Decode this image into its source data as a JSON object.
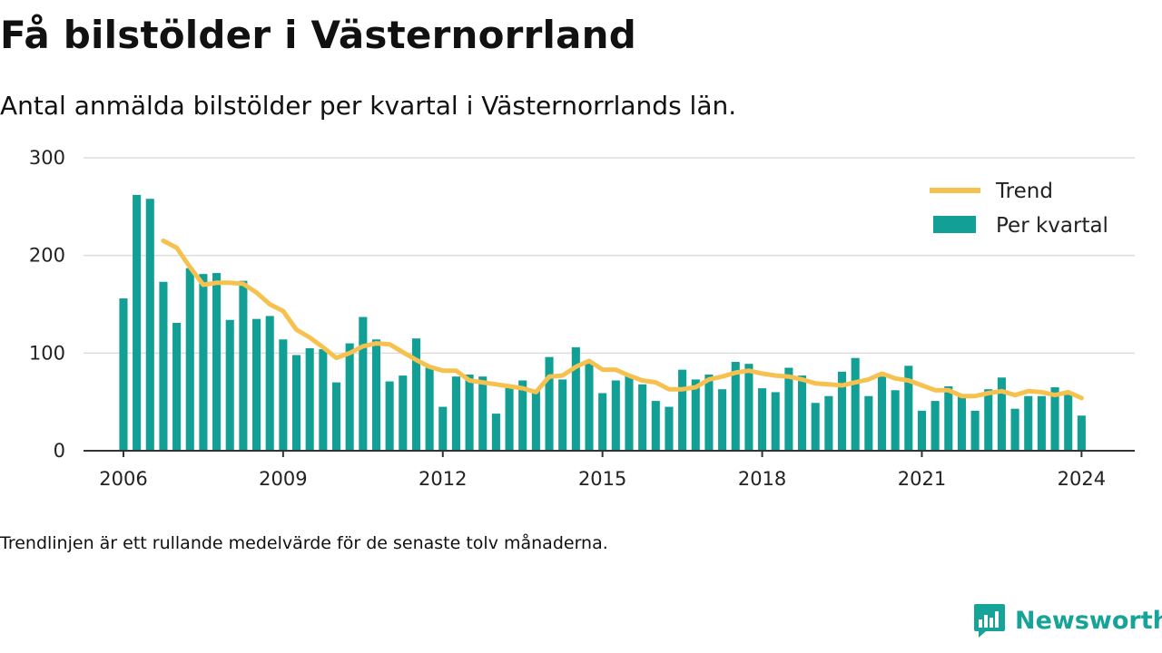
{
  "header": {
    "title": "Få bilstölder i Västernorrland",
    "subtitle": "Antal anmälda bilstölder per kvartal i Västernorrlands län."
  },
  "footnote": "Trendlinjen är ett rullande medelvärde för de senaste tolv månaderna.",
  "brand": {
    "name": "Newsworthy",
    "logo_icon": "newsworthy-bar-chart-icon",
    "color": "#17a398"
  },
  "chart_data": {
    "type": "bar",
    "ylim": [
      0,
      300
    ],
    "yticks": [
      0,
      100,
      200,
      300
    ],
    "xlim": [
      2005.25,
      2025.0
    ],
    "xticks": [
      "2006",
      "2009",
      "2012",
      "2015",
      "2018",
      "2021",
      "2024"
    ],
    "grid": "horizontal",
    "legend_position": "top-right",
    "colors": {
      "bars": "#12a096",
      "trend": "#f7c150",
      "grid": "#dddddd",
      "axis": "#333333"
    },
    "x": [
      "2006-Q1",
      "2006-Q2",
      "2006-Q3",
      "2006-Q4",
      "2007-Q1",
      "2007-Q2",
      "2007-Q3",
      "2007-Q4",
      "2008-Q1",
      "2008-Q2",
      "2008-Q3",
      "2008-Q4",
      "2009-Q1",
      "2009-Q2",
      "2009-Q3",
      "2009-Q4",
      "2010-Q1",
      "2010-Q2",
      "2010-Q3",
      "2010-Q4",
      "2011-Q1",
      "2011-Q2",
      "2011-Q3",
      "2011-Q4",
      "2012-Q1",
      "2012-Q2",
      "2012-Q3",
      "2012-Q4",
      "2013-Q1",
      "2013-Q2",
      "2013-Q3",
      "2013-Q4",
      "2014-Q1",
      "2014-Q2",
      "2014-Q3",
      "2014-Q4",
      "2015-Q1",
      "2015-Q2",
      "2015-Q3",
      "2015-Q4",
      "2016-Q1",
      "2016-Q2",
      "2016-Q3",
      "2016-Q4",
      "2017-Q1",
      "2017-Q2",
      "2017-Q3",
      "2017-Q4",
      "2018-Q1",
      "2018-Q2",
      "2018-Q3",
      "2018-Q4",
      "2019-Q1",
      "2019-Q2",
      "2019-Q3",
      "2019-Q4",
      "2020-Q1",
      "2020-Q2",
      "2020-Q3",
      "2020-Q4",
      "2021-Q1",
      "2021-Q2",
      "2021-Q3",
      "2021-Q4",
      "2022-Q1",
      "2022-Q2",
      "2022-Q3",
      "2022-Q4",
      "2023-Q1",
      "2023-Q2",
      "2023-Q3",
      "2023-Q4",
      "2024-Q1"
    ],
    "series": [
      {
        "name": "Per kvartal",
        "type": "bar",
        "values": [
          156,
          262,
          258,
          173,
          131,
          187,
          181,
          182,
          134,
          174,
          135,
          138,
          114,
          98,
          105,
          104,
          70,
          110,
          137,
          114,
          71,
          77,
          115,
          85,
          45,
          76,
          78,
          76,
          38,
          66,
          72,
          62,
          96,
          73,
          106,
          90,
          59,
          72,
          78,
          68,
          51,
          45,
          83,
          73,
          78,
          63,
          91,
          89,
          64,
          60,
          85,
          77,
          49,
          56,
          81,
          95,
          56,
          76,
          62,
          87,
          41,
          51,
          66,
          57,
          41,
          63,
          75,
          43,
          56,
          56,
          65,
          58,
          36
        ]
      },
      {
        "name": "Trend",
        "type": "line",
        "values": [
          null,
          null,
          null,
          215,
          208,
          188,
          170,
          172,
          172,
          171,
          162,
          150,
          143,
          124,
          116,
          106,
          95,
          100,
          107,
          110,
          109,
          101,
          93,
          86,
          82,
          82,
          72,
          70,
          68,
          66,
          64,
          60,
          76,
          77,
          86,
          92,
          83,
          83,
          77,
          72,
          70,
          63,
          63,
          65,
          73,
          76,
          80,
          82,
          79,
          77,
          76,
          73,
          69,
          68,
          67,
          70,
          73,
          79,
          74,
          72,
          67,
          62,
          62,
          56,
          56,
          59,
          61,
          57,
          61,
          60,
          57,
          60,
          54
        ]
      }
    ]
  }
}
